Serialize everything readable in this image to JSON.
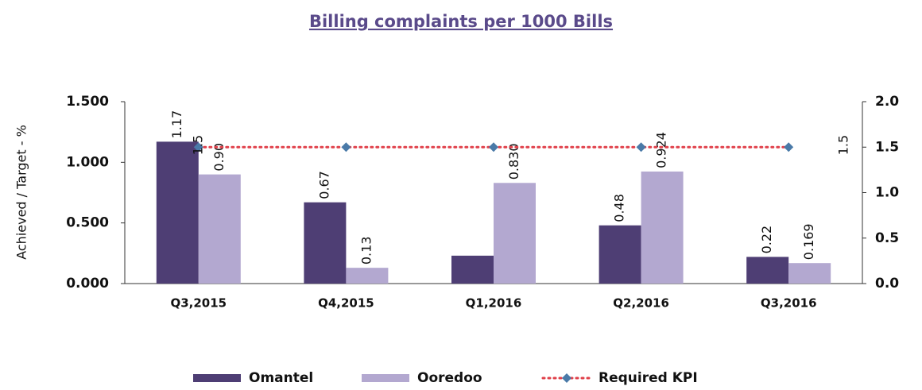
{
  "chart_data": {
    "type": "bar",
    "title": "Billing complaints per 1000 Bills",
    "y_label": "Achieved / Target - %",
    "categories": [
      "Q3,2015",
      "Q4,2015",
      "Q1,2016",
      "Q2,2016",
      "Q3,2016"
    ],
    "series": [
      {
        "name": "Omantel",
        "color": "#4e3e74",
        "type": "bar",
        "values": [
          1.17,
          0.67,
          0.23,
          0.48,
          0.22
        ],
        "value_labels": [
          "1.17",
          "0.67",
          null,
          "0.48",
          "0.22"
        ]
      },
      {
        "name": "Ooredoo",
        "color": "#b3a8d0",
        "type": "bar",
        "values": [
          0.9,
          0.13,
          0.83,
          0.924,
          0.169
        ],
        "value_labels": [
          "0.90",
          "0.13",
          "0.830",
          "0.924",
          "0.169"
        ]
      },
      {
        "name": "Required KPI",
        "color": "#e0404a",
        "marker_color": "#4a7aa8",
        "type": "line",
        "axis": "y2",
        "values": [
          1.5,
          1.5,
          1.5,
          1.5,
          1.5
        ],
        "value_labels": [
          "1.5",
          null,
          null,
          null,
          "1.5"
        ]
      }
    ],
    "ylim": [
      0,
      1.5
    ],
    "yticks": [
      {
        "value": 0,
        "label": "0.000"
      },
      {
        "value": 0.5,
        "label": "0.500"
      },
      {
        "value": 1,
        "label": "1.000"
      },
      {
        "value": 1.5,
        "label": "1.500"
      }
    ],
    "y2lim": [
      0,
      2
    ],
    "y2ticks": [
      {
        "value": 0,
        "label": "0.0"
      },
      {
        "value": 0.5,
        "label": "0.5"
      },
      {
        "value": 1,
        "label": "1.0"
      },
      {
        "value": 1.5,
        "label": "1.5"
      },
      {
        "value": 2,
        "label": "2.0"
      }
    ],
    "grid": false,
    "legend": "bottom"
  }
}
